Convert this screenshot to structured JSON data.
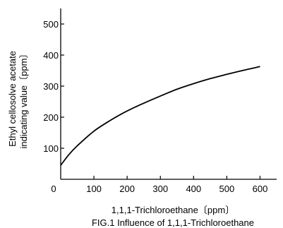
{
  "chart_data": {
    "type": "line",
    "caption": "FIG.1 Influence of 1,1,1-Trichloroethane",
    "xlabel": "1,1,1-Trichloroethane〔ppm〕",
    "ylabel_line1": "Ethyl cellosolve acetate",
    "ylabel_line2": "indicating value〔ppm〕",
    "xlim": [
      0,
      650
    ],
    "ylim": [
      0,
      550
    ],
    "x_ticks": [
      100,
      200,
      300,
      400,
      500,
      600
    ],
    "y_ticks": [
      100,
      200,
      300,
      400,
      500
    ],
    "origin_label": "0",
    "grid": false,
    "series": [
      {
        "x": [
          0,
          25,
          50,
          100,
          150,
          200,
          250,
          300,
          350,
          400,
          450,
          500,
          550,
          600
        ],
        "y": [
          45,
          80,
          108,
          155,
          190,
          220,
          245,
          268,
          290,
          308,
          324,
          338,
          351,
          363
        ]
      }
    ]
  }
}
